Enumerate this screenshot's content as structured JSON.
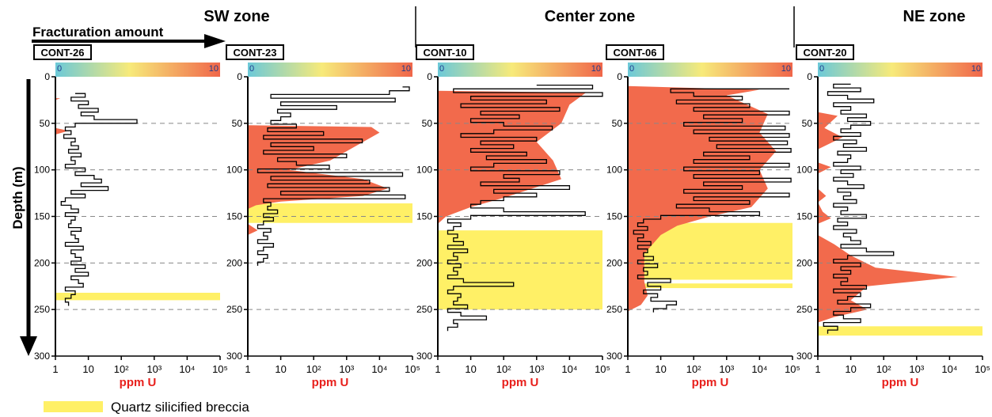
{
  "chart_data": {
    "type": "line",
    "zones": [
      {
        "label": "SW zone"
      },
      {
        "label": "Center zone"
      },
      {
        "label": "NE zone"
      }
    ],
    "fracturation_label": "Fracturation amount",
    "scale_ticks": [
      "0",
      "10"
    ],
    "ylabel": "Depth (m)",
    "xlabel": "ppm U",
    "ylim": [
      0,
      300
    ],
    "y_ticks": [
      0,
      50,
      100,
      150,
      200,
      250,
      300
    ],
    "x_scale": "log",
    "xlim": [
      1,
      100000
    ],
    "x_tick_labels": [
      "1",
      "10",
      "10²",
      "10³",
      "10⁴",
      "10⁵"
    ],
    "legend": {
      "label": "Quartz silicified breccia",
      "color": "#fff066"
    },
    "colors": {
      "fracturation": "#f26a4c",
      "breccia": "#fff066",
      "log_line": "#000000",
      "axis_label_red": "#e8201c"
    },
    "wells": [
      {
        "name": "CONT-26",
        "uranium_log": {
          "depth": [
            18,
            22,
            26,
            30,
            34,
            38,
            42,
            46,
            50,
            54,
            58,
            62,
            66,
            70,
            74,
            78,
            82,
            86,
            90,
            94,
            98,
            102,
            106,
            110,
            114,
            118,
            122,
            126,
            130,
            134,
            138,
            142,
            146,
            150,
            154,
            158,
            162,
            166,
            170,
            174,
            178,
            182,
            186,
            190,
            194,
            198,
            202,
            206,
            210,
            214,
            218,
            222,
            226,
            230,
            234,
            238,
            242,
            246
          ],
          "ppm": [
            4,
            8,
            3,
            10,
            5,
            20,
            6,
            15,
            300,
            4,
            2,
            3,
            1.8,
            4,
            3,
            5,
            2.5,
            6,
            3,
            4,
            2,
            8,
            4,
            15,
            25,
            6,
            40,
            3,
            8,
            2,
            1.5,
            3,
            5,
            2,
            4,
            3,
            2.5,
            6,
            3,
            4,
            5,
            2,
            7,
            3,
            4,
            6,
            3,
            8,
            4,
            10,
            3,
            5,
            7,
            2,
            4,
            3,
            2,
            2.5
          ]
        },
        "fracturation": [
          {
            "depth": 23,
            "value": 0.3
          },
          {
            "depth": 25,
            "value": 0
          },
          {
            "depth": 55,
            "value": 0
          },
          {
            "depth": 58,
            "value": 0.8
          },
          {
            "depth": 62,
            "value": 0
          }
        ],
        "breccia": [
          [
            232,
            240
          ]
        ]
      },
      {
        "name": "CONT-23",
        "uranium_log": {
          "depth": [
            11,
            15,
            19,
            23,
            27,
            31,
            35,
            39,
            43,
            47,
            51,
            55,
            59,
            63,
            67,
            71,
            75,
            79,
            83,
            87,
            91,
            95,
            99,
            103,
            107,
            111,
            115,
            119,
            123,
            127,
            131,
            135,
            139,
            143,
            147,
            151,
            155,
            159,
            163,
            167,
            171,
            175,
            179,
            183,
            187,
            191,
            195,
            199,
            203
          ],
          "ppm": [
            50000,
            80000,
            20000,
            5,
            30000,
            10,
            500,
            8,
            20,
            10,
            5,
            30,
            4,
            200,
            3,
            3000,
            5,
            100,
            3,
            1000,
            8,
            30,
            300,
            2,
            50000,
            5,
            5000,
            4,
            20000,
            10,
            60000,
            3,
            5,
            4,
            8,
            3,
            6,
            3,
            2,
            5,
            3,
            4,
            2,
            6,
            3,
            2,
            4,
            3,
            2
          ]
        },
        "fracturation": [
          {
            "depth": 52,
            "value": 0
          },
          {
            "depth": 54,
            "value": 7.5
          },
          {
            "depth": 60,
            "value": 8
          },
          {
            "depth": 70,
            "value": 7
          },
          {
            "depth": 80,
            "value": 6
          },
          {
            "depth": 90,
            "value": 5
          },
          {
            "depth": 100,
            "value": 2.5
          },
          {
            "depth": 110,
            "value": 7
          },
          {
            "depth": 120,
            "value": 8.5
          },
          {
            "depth": 128,
            "value": 7
          },
          {
            "depth": 134,
            "value": 2
          },
          {
            "depth": 138,
            "value": 0.5
          },
          {
            "depth": 142,
            "value": 0
          },
          {
            "depth": 158,
            "value": 0
          },
          {
            "depth": 165,
            "value": 0.6
          },
          {
            "depth": 170,
            "value": 0
          }
        ],
        "breccia": [
          [
            136,
            157
          ]
        ]
      },
      {
        "name": "CONT-10",
        "uranium_log": {
          "depth": [
            9,
            13,
            17,
            21,
            25,
            29,
            33,
            37,
            41,
            45,
            49,
            53,
            57,
            61,
            65,
            69,
            73,
            77,
            81,
            85,
            89,
            93,
            97,
            101,
            105,
            109,
            113,
            117,
            121,
            125,
            129,
            133,
            137,
            141,
            145,
            149,
            153,
            157,
            161,
            165,
            169,
            173,
            177,
            181,
            185,
            189,
            193,
            197,
            201,
            205,
            209,
            213,
            217,
            221,
            225,
            229,
            233,
            237,
            241,
            245,
            249,
            253,
            257,
            261,
            265,
            269,
            273
          ],
          "ppm": [
            1000,
            50000,
            3,
            100000,
            10,
            2000,
            5,
            5000,
            20,
            300,
            10,
            100,
            3000,
            50,
            5,
            1000,
            20,
            200,
            10,
            500,
            30,
            2000,
            50,
            10,
            5000,
            100,
            300,
            20,
            10000,
            50,
            1000,
            100,
            20,
            10,
            100,
            30000,
            10,
            2,
            5,
            3,
            2,
            4,
            3,
            6,
            2,
            8,
            3,
            4,
            2,
            5,
            3,
            4,
            2,
            6,
            200,
            3,
            2,
            5,
            4,
            3,
            8,
            2,
            5,
            30,
            3,
            4,
            2
          ]
        },
        "fracturation": [
          {
            "depth": 15,
            "value": 0
          },
          {
            "depth": 17,
            "value": 9
          },
          {
            "depth": 30,
            "value": 8
          },
          {
            "depth": 50,
            "value": 7.5
          },
          {
            "depth": 70,
            "value": 6
          },
          {
            "depth": 90,
            "value": 7
          },
          {
            "depth": 110,
            "value": 7.5
          },
          {
            "depth": 130,
            "value": 4
          },
          {
            "depth": 140,
            "value": 2
          },
          {
            "depth": 150,
            "value": 0.5
          },
          {
            "depth": 158,
            "value": 0
          }
        ],
        "breccia": [
          [
            165,
            250
          ]
        ]
      },
      {
        "name": "CONT-06",
        "uranium_log": {
          "depth": [
            13,
            17,
            21,
            25,
            29,
            33,
            37,
            41,
            45,
            49,
            53,
            57,
            61,
            65,
            69,
            73,
            77,
            81,
            85,
            89,
            93,
            97,
            101,
            105,
            109,
            113,
            117,
            121,
            125,
            129,
            133,
            137,
            141,
            145,
            149,
            153,
            157,
            161,
            165,
            169,
            173,
            177,
            181,
            185,
            189,
            193,
            197,
            201,
            205,
            209,
            213,
            217,
            221,
            225,
            229,
            233,
            237,
            241,
            245,
            249,
            253
          ],
          "ppm": [
            80000,
            20,
            100,
            3000,
            30,
            5000,
            100,
            80000,
            200,
            3000,
            50,
            60000,
            100,
            80000,
            300,
            70000,
            500,
            90000,
            200,
            5000,
            100,
            80000,
            50,
            10000,
            100,
            90000,
            200,
            3000,
            50,
            80000,
            100,
            5000,
            30,
            300,
            10000,
            10,
            3,
            2,
            4,
            1.5,
            3,
            2,
            5,
            2,
            4,
            3,
            6,
            2,
            8,
            3,
            4,
            2,
            20,
            4,
            10,
            3,
            8,
            5,
            30,
            15,
            6
          ]
        },
        "fracturation": [
          {
            "depth": 10,
            "value": 0
          },
          {
            "depth": 14,
            "value": 8
          },
          {
            "depth": 20,
            "value": 6
          },
          {
            "depth": 40,
            "value": 8.5
          },
          {
            "depth": 60,
            "value": 8
          },
          {
            "depth": 80,
            "value": 9
          },
          {
            "depth": 100,
            "value": 8
          },
          {
            "depth": 120,
            "value": 8.5
          },
          {
            "depth": 140,
            "value": 7.5
          },
          {
            "depth": 150,
            "value": 5
          },
          {
            "depth": 160,
            "value": 3
          },
          {
            "depth": 170,
            "value": 2
          },
          {
            "depth": 190,
            "value": 1
          },
          {
            "depth": 220,
            "value": 1
          },
          {
            "depth": 235,
            "value": 1.2
          },
          {
            "depth": 245,
            "value": 0.8
          },
          {
            "depth": 252,
            "value": 0
          }
        ],
        "breccia": [
          [
            157,
            218
          ],
          [
            222,
            227
          ]
        ]
      },
      {
        "name": "CONT-20",
        "uranium_log": {
          "depth": [
            8,
            12,
            16,
            20,
            24,
            28,
            32,
            36,
            40,
            44,
            48,
            52,
            56,
            60,
            64,
            68,
            72,
            76,
            80,
            84,
            88,
            92,
            96,
            100,
            104,
            108,
            112,
            116,
            120,
            124,
            128,
            132,
            136,
            140,
            144,
            148,
            152,
            156,
            160,
            164,
            168,
            172,
            176,
            180,
            184,
            188,
            192,
            196,
            200,
            204,
            208,
            212,
            216,
            220,
            224,
            228,
            232,
            236,
            240,
            244,
            248,
            252,
            256,
            260,
            264,
            268,
            272,
            276
          ],
          "ppm": [
            10,
            3,
            20,
            2,
            8,
            50,
            3,
            10,
            5,
            30,
            8,
            40,
            10,
            5,
            20,
            3,
            15,
            6,
            30,
            4,
            10,
            8,
            3,
            20,
            5,
            12,
            3,
            8,
            25,
            4,
            10,
            6,
            15,
            3,
            8,
            5,
            30,
            4,
            8,
            3,
            15,
            6,
            10,
            20,
            5,
            30,
            200,
            8,
            3,
            20,
            5,
            10,
            3,
            8,
            5,
            30,
            3,
            20,
            8,
            4,
            40,
            10,
            3,
            6,
            20,
            1.5,
            4,
            2
          ]
        },
        "fracturation": [
          {
            "depth": 38,
            "value": 0
          },
          {
            "depth": 42,
            "value": 1.2
          },
          {
            "depth": 55,
            "value": 0.4
          },
          {
            "depth": 65,
            "value": 1.5
          },
          {
            "depth": 78,
            "value": 0
          },
          {
            "depth": 92,
            "value": 0
          },
          {
            "depth": 97,
            "value": 0.8
          },
          {
            "depth": 104,
            "value": 0
          },
          {
            "depth": 120,
            "value": 0
          },
          {
            "depth": 128,
            "value": 0.5
          },
          {
            "depth": 135,
            "value": 0
          },
          {
            "depth": 145,
            "value": 0.3
          },
          {
            "depth": 152,
            "value": 0.8
          },
          {
            "depth": 158,
            "value": 0
          },
          {
            "depth": 170,
            "value": 0
          },
          {
            "depth": 180,
            "value": 1
          },
          {
            "depth": 192,
            "value": 2
          },
          {
            "depth": 205,
            "value": 3.5
          },
          {
            "depth": 215,
            "value": 8.5
          },
          {
            "depth": 225,
            "value": 3
          },
          {
            "depth": 240,
            "value": 2
          },
          {
            "depth": 250,
            "value": 3
          },
          {
            "depth": 258,
            "value": 1
          },
          {
            "depth": 264,
            "value": 0
          }
        ],
        "breccia": [
          [
            268,
            278
          ]
        ]
      }
    ]
  }
}
